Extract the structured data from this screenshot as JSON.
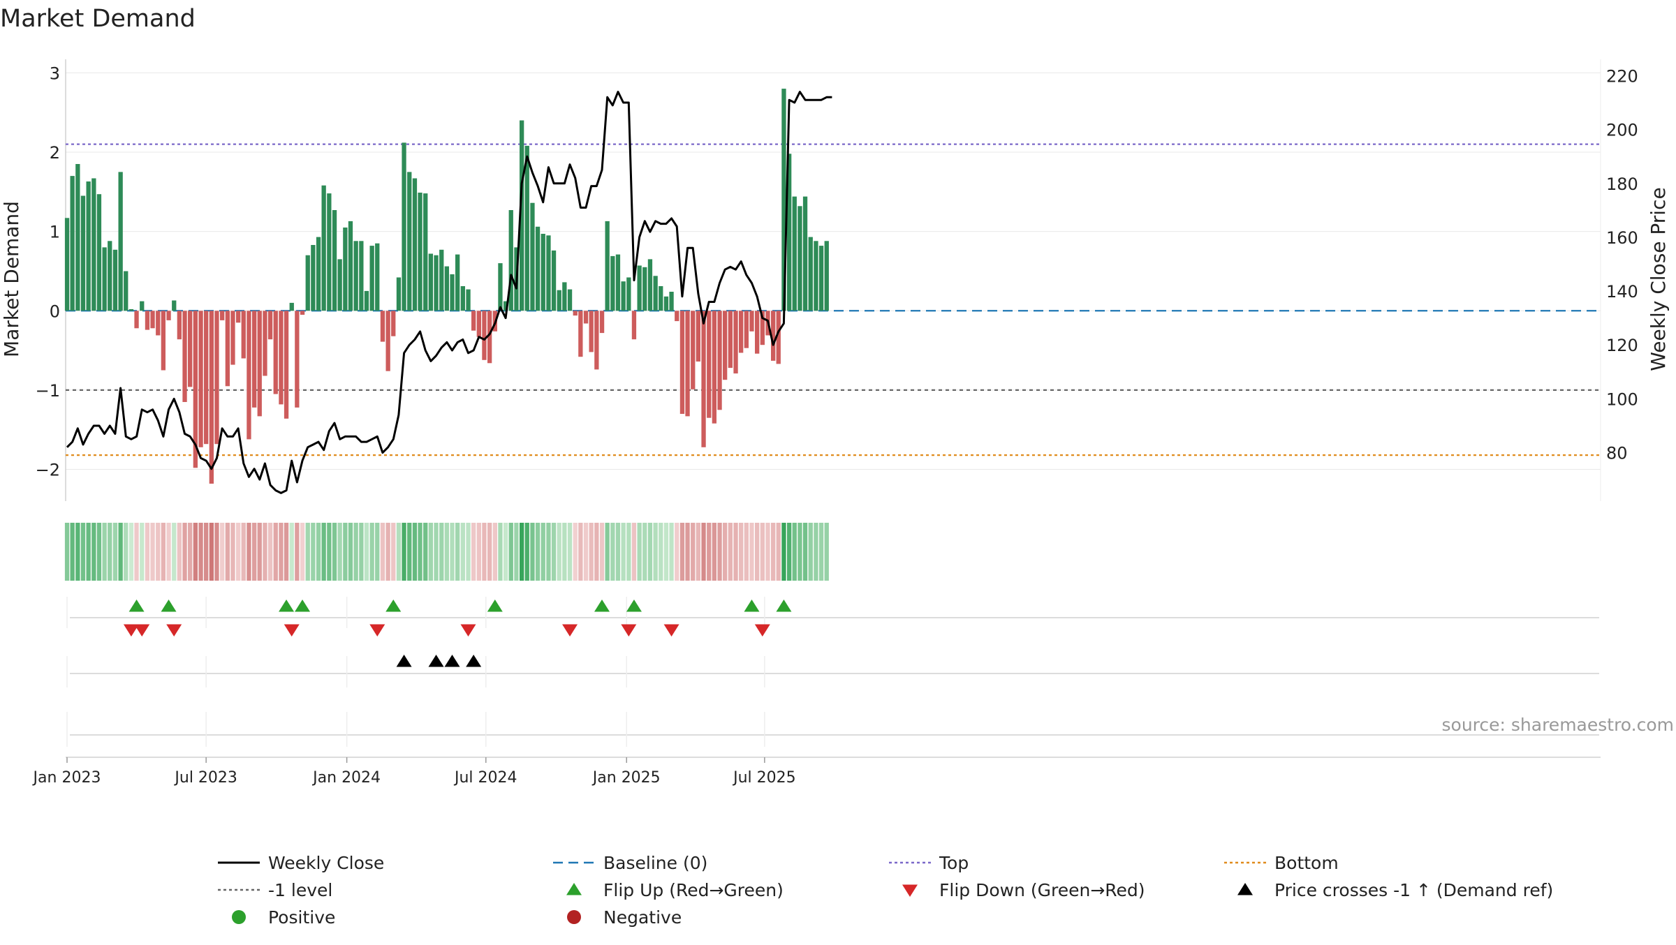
{
  "chart_data": {
    "type": "bar",
    "title": "Market Demand",
    "ylabel_left": "Market Demand",
    "ylabel_right": "Weekly Close Price",
    "ylim_left": [
      -2.4,
      3.1
    ],
    "ylim_right": [
      62,
      224
    ],
    "left_ticks": [
      3,
      2,
      1,
      0,
      -1,
      -2
    ],
    "left_tick_labels": [
      "3",
      "2",
      "1",
      "0",
      "−1",
      "−2"
    ],
    "right_ticks": [
      220,
      200,
      180,
      160,
      140,
      120,
      100,
      80
    ],
    "right_tick_labels": [
      "220",
      "200",
      "180",
      "160",
      "140",
      "120",
      "100",
      "80"
    ],
    "date_ticks": [
      {
        "label": "Jan 2023",
        "week": 0
      },
      {
        "label": "Jul 2023",
        "week": 26
      },
      {
        "label": "Jan 2024",
        "week": 52.3
      },
      {
        "label": "Jul 2024",
        "week": 78.3
      },
      {
        "label": "Jan 2025",
        "week": 104.6
      },
      {
        "label": "Jul 2025",
        "week": 130.4
      }
    ],
    "reference_lines": {
      "top": 2.1,
      "bottom": -1.82,
      "minus_one": -1,
      "baseline": 0
    },
    "demand": [
      1.17,
      1.7,
      1.85,
      1.45,
      1.63,
      1.67,
      1.47,
      0.8,
      0.88,
      0.77,
      1.75,
      0.5,
      0.02,
      -0.22,
      0.12,
      -0.24,
      -0.22,
      -0.31,
      -0.75,
      -0.12,
      0.13,
      -0.36,
      -1.15,
      -0.96,
      -1.98,
      -1.72,
      -1.68,
      -2.18,
      -1.68,
      -0.12,
      -0.95,
      -0.68,
      -0.15,
      -0.6,
      -1.62,
      -1.22,
      -1.33,
      -0.82,
      -0.36,
      -1.05,
      -1.18,
      -1.36,
      0.1,
      -1.22,
      -0.05,
      0.7,
      0.83,
      0.93,
      1.58,
      1.48,
      1.27,
      0.65,
      1.05,
      1.13,
      0.88,
      0.88,
      0.25,
      0.82,
      0.85,
      -0.39,
      -0.76,
      -0.32,
      0.42,
      2.12,
      1.75,
      1.67,
      1.49,
      1.48,
      0.72,
      0.7,
      0.77,
      0.56,
      0.46,
      0.71,
      0.31,
      0.27,
      -0.25,
      -0.33,
      -0.62,
      -0.66,
      -0.26,
      0.6,
      0.12,
      1.27,
      0.8,
      2.4,
      2.08,
      1.36,
      1.06,
      0.97,
      0.95,
      0.76,
      0.26,
      0.36,
      0.27,
      -0.06,
      -0.58,
      -0.16,
      -0.52,
      -0.74,
      -0.28,
      1.13,
      0.69,
      0.71,
      0.37,
      0.42,
      -0.36,
      0.57,
      0.55,
      0.65,
      0.44,
      0.31,
      0.18,
      0.24,
      -0.13,
      -1.3,
      -1.33,
      -0.99,
      -0.64,
      -1.72,
      -1.35,
      -1.42,
      -1.25,
      -0.87,
      -0.72,
      -0.79,
      -0.53,
      -0.47,
      -0.26,
      -0.54,
      -0.43,
      -0.31,
      -0.63,
      -0.67,
      2.8,
      1.98,
      1.44,
      1.32,
      1.44,
      0.93,
      0.88,
      0.82,
      0.88
    ],
    "price": [
      82,
      84,
      89,
      83,
      87,
      90,
      90,
      87,
      90,
      87,
      104,
      86,
      85,
      86,
      96,
      95,
      96,
      92,
      86,
      96,
      100,
      95,
      87,
      86,
      83,
      78,
      77,
      74,
      78,
      89,
      86,
      86,
      89,
      76,
      71,
      74,
      70,
      76,
      68,
      66,
      65,
      66,
      77,
      69,
      77,
      82,
      83,
      84,
      81,
      88,
      91,
      85,
      86,
      86,
      86,
      84,
      84,
      85,
      86,
      80,
      82,
      85,
      94,
      117,
      120,
      122,
      125,
      118,
      114,
      116,
      119,
      121,
      118,
      121,
      122,
      117,
      118,
      123,
      122,
      124,
      128,
      134,
      130,
      146,
      141,
      180,
      190,
      184,
      179,
      173,
      186,
      180,
      180,
      180,
      187,
      182,
      171,
      171,
      179,
      179,
      185,
      212,
      209,
      214,
      210,
      210,
      144,
      160,
      166,
      162,
      166,
      165,
      165,
      167,
      164,
      138,
      156,
      156,
      139,
      128,
      136,
      136,
      143,
      148,
      149,
      148,
      151,
      146,
      143,
      138,
      130,
      129,
      120,
      125,
      128,
      211,
      210,
      214,
      211,
      211,
      211,
      211,
      212,
      212
    ],
    "flip_up_weeks": [
      13,
      19,
      41,
      44,
      61,
      80,
      100,
      106,
      128,
      134
    ],
    "flip_down_weeks": [
      12,
      14,
      20,
      42,
      58,
      75,
      94,
      105,
      113,
      130
    ],
    "price_cross_weeks": [
      63,
      69,
      72,
      76
    ],
    "source": "source: sharemaestro.com",
    "legend": [
      {
        "key": "weekly_close",
        "label": "Weekly Close",
        "color": "#000000",
        "marker": "solid-line"
      },
      {
        "key": "baseline",
        "label": "Baseline (0)",
        "color": "#1f77b4",
        "marker": "dashed-line"
      },
      {
        "key": "top",
        "label": "Top",
        "color": "#7b68c9",
        "marker": "dotted-line"
      },
      {
        "key": "bottom",
        "label": "Bottom",
        "color": "#e08b1c",
        "marker": "dotted-line"
      },
      {
        "key": "minus_one",
        "label": "-1 level",
        "color": "#666666",
        "marker": "dotted-line"
      },
      {
        "key": "flip_up",
        "label": "Flip Up (Red→Green)",
        "color": "#2ca02c",
        "marker": "triangle-up"
      },
      {
        "key": "flip_down",
        "label": "Flip Down (Green→Red)",
        "color": "#d62728",
        "marker": "triangle-down"
      },
      {
        "key": "price_cross",
        "label": "Price crosses -1 ↑ (Demand ref)",
        "color": "#000000",
        "marker": "triangle-up"
      },
      {
        "key": "positive",
        "label": "Positive",
        "color": "#2ca02c",
        "marker": "circle"
      },
      {
        "key": "negative",
        "label": "Negative",
        "color": "#b22222",
        "marker": "circle"
      }
    ],
    "colors": {
      "positive_bar": "#2e8b57",
      "negative_bar": "#cd5c5c",
      "baseline": "#1f77b4",
      "top": "#7b68c9",
      "bottom": "#e08b1c",
      "minus_one": "#666666",
      "price": "#000000",
      "flip_up": "#2ca02c",
      "flip_down": "#d62728",
      "cross": "#000000",
      "grid": "#e8e8e8",
      "axis": "#d0d0d0",
      "text": "#222222"
    }
  }
}
